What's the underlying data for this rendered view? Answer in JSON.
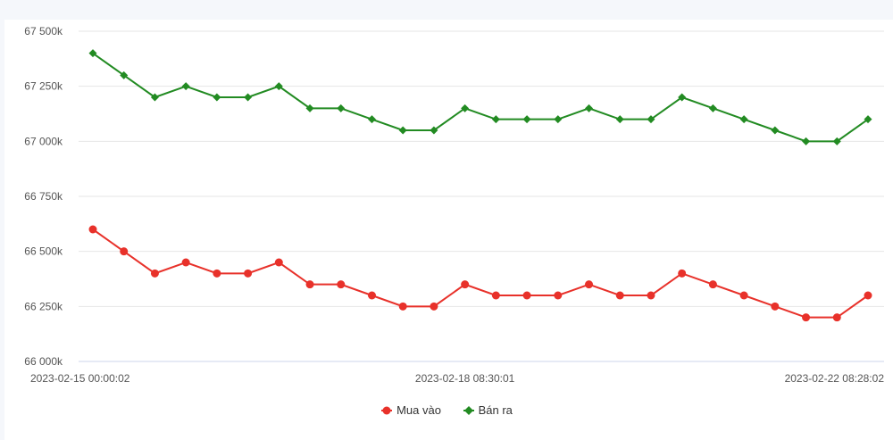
{
  "chart_data": {
    "type": "line",
    "y_ticks": [
      "66 000k",
      "66 250k",
      "66 500k",
      "66 750k",
      "67 000k",
      "67 250k",
      "67 500k"
    ],
    "ylim": [
      66000,
      67500
    ],
    "y_step": 250,
    "x_tick_labels": [
      {
        "index": 0,
        "label": "2023-02-15 00:00:02"
      },
      {
        "index": 12,
        "label": "2023-02-18 08:30:01"
      },
      {
        "index": 25,
        "label": "2023-02-22 08:28:02"
      }
    ],
    "grid": true,
    "legend_position": "bottom",
    "series": [
      {
        "name": "Mua vào",
        "color": "#e8312a",
        "marker": "circle",
        "values": [
          66600,
          66500,
          66400,
          66450,
          66400,
          66400,
          66450,
          66350,
          66350,
          66300,
          66250,
          66250,
          66350,
          66300,
          66300,
          66300,
          66350,
          66300,
          66300,
          66400,
          66350,
          66300,
          66250,
          66200,
          66200,
          66300
        ]
      },
      {
        "name": "Bán ra",
        "color": "#228b22",
        "marker": "diamond",
        "values": [
          67400,
          67300,
          67200,
          67250,
          67200,
          67200,
          67250,
          67150,
          67150,
          67100,
          67050,
          67050,
          67150,
          67100,
          67100,
          67100,
          67150,
          67100,
          67100,
          67200,
          67150,
          67100,
          67050,
          67000,
          67000,
          67100
        ]
      }
    ]
  }
}
